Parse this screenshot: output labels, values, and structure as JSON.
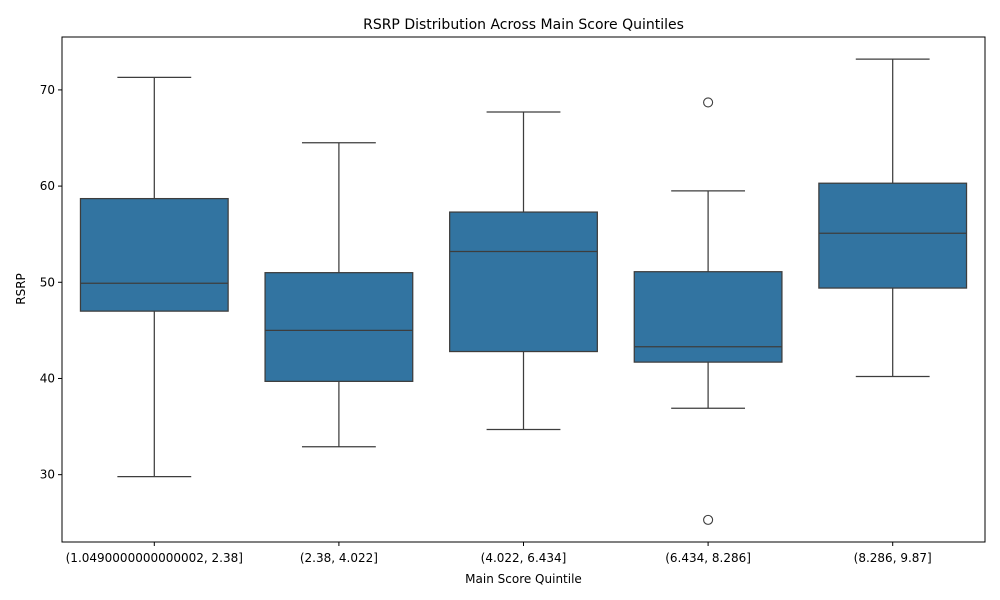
{
  "chart_data": {
    "type": "box",
    "title": "RSRP Distribution Across Main Score Quintiles",
    "xlabel": "Main Score Quintile",
    "ylabel": "RSRP",
    "ylim": [
      23,
      75.5
    ],
    "yticks": [
      30,
      40,
      50,
      60,
      70
    ],
    "grid": false,
    "categories": [
      "(1.0490000000000002, 2.38]",
      "(2.38, 4.022]",
      "(4.022, 6.434]",
      "(6.434, 8.286]",
      "(8.286, 9.87]"
    ],
    "boxes": [
      {
        "whisker_low": 29.8,
        "q1": 47.0,
        "median": 49.9,
        "q3": 58.7,
        "whisker_high": 71.3,
        "outliers": []
      },
      {
        "whisker_low": 32.9,
        "q1": 39.7,
        "median": 45.0,
        "q3": 51.0,
        "whisker_high": 64.5,
        "outliers": []
      },
      {
        "whisker_low": 34.7,
        "q1": 42.8,
        "median": 53.2,
        "q3": 57.3,
        "whisker_high": 67.7,
        "outliers": []
      },
      {
        "whisker_low": 36.9,
        "q1": 41.7,
        "median": 43.3,
        "q3": 51.1,
        "whisker_high": 59.5,
        "outliers": [
          68.7,
          25.3
        ]
      },
      {
        "whisker_low": 40.2,
        "q1": 49.4,
        "median": 55.1,
        "q3": 60.3,
        "whisker_high": 73.2,
        "outliers": []
      }
    ],
    "box_color": "#3274a1",
    "line_color": "#3d3d3d"
  }
}
